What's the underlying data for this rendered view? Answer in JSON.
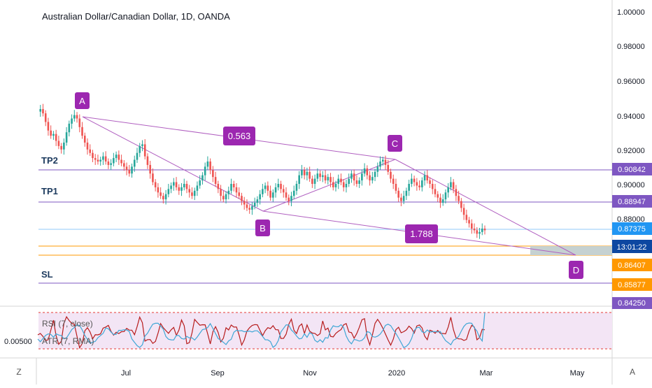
{
  "header": {
    "title": "Australian Dollar/Canadian Dollar, 1D, OANDA"
  },
  "colors": {
    "bull": "#26a69a",
    "bear": "#ef5350",
    "harmonic": "#b05fc0",
    "label_fill": "#9c27b0",
    "level_line": "#7e57c2",
    "price_line": "#90caf9",
    "stop_orange": "#ff9800",
    "rsi": "#b71c1c",
    "atr": "#3fa7d6",
    "rsi_band": "#f3e5f5",
    "rsi_bound": "#e53935",
    "projection_box": "#c5d1d1"
  },
  "chart_data": {
    "type": "candlestick",
    "x_tick_labels": [
      "Jul",
      "Sep",
      "Nov",
      "2020",
      "Mar",
      "May"
    ],
    "y_tick_labels": [
      "1.00000",
      "0.98000",
      "0.96000",
      "0.94000",
      "0.92000",
      "0.90000",
      "0.88000"
    ],
    "ylim": [
      0.8425,
      1.0
    ],
    "price_path": [
      0.942,
      0.9435,
      0.941,
      0.936,
      0.931,
      0.928,
      0.929,
      0.925,
      0.922,
      0.92,
      0.924,
      0.93,
      0.935,
      0.938,
      0.94,
      0.938,
      0.933,
      0.928,
      0.924,
      0.92,
      0.918,
      0.915,
      0.914,
      0.913,
      0.914,
      0.916,
      0.913,
      0.911,
      0.912,
      0.915,
      0.917,
      0.914,
      0.912,
      0.91,
      0.908,
      0.906,
      0.91,
      0.914,
      0.918,
      0.922,
      0.923,
      0.916,
      0.911,
      0.906,
      0.901,
      0.898,
      0.895,
      0.893,
      0.891,
      0.894,
      0.897,
      0.899,
      0.901,
      0.898,
      0.896,
      0.898,
      0.9,
      0.897,
      0.895,
      0.893,
      0.896,
      0.899,
      0.902,
      0.905,
      0.91,
      0.913,
      0.908,
      0.904,
      0.9,
      0.897,
      0.893,
      0.891,
      0.894,
      0.896,
      0.9,
      0.898,
      0.895,
      0.893,
      0.89,
      0.888,
      0.886,
      0.885,
      0.887,
      0.889,
      0.891,
      0.894,
      0.897,
      0.899,
      0.896,
      0.892,
      0.895,
      0.898,
      0.9,
      0.897,
      0.895,
      0.892,
      0.89,
      0.893,
      0.896,
      0.9,
      0.905,
      0.908,
      0.905,
      0.907,
      0.903,
      0.9,
      0.903,
      0.906,
      0.904,
      0.905,
      0.902,
      0.904,
      0.901,
      0.898,
      0.9,
      0.903,
      0.901,
      0.898,
      0.9,
      0.903,
      0.906,
      0.902,
      0.9,
      0.902,
      0.906,
      0.909,
      0.905,
      0.902,
      0.904,
      0.907,
      0.91,
      0.913,
      0.914,
      0.911,
      0.907,
      0.903,
      0.9,
      0.896,
      0.892,
      0.89,
      0.893,
      0.896,
      0.9,
      0.903,
      0.901,
      0.899,
      0.898,
      0.902,
      0.905,
      0.902,
      0.9,
      0.897,
      0.894,
      0.892,
      0.889,
      0.891,
      0.895,
      0.898,
      0.901,
      0.897,
      0.893,
      0.89,
      0.886,
      0.882,
      0.879,
      0.877,
      0.874,
      0.873,
      0.871,
      0.872,
      0.874,
      0.873
    ],
    "levels": [
      {
        "name": "TP2",
        "price": 0.90842,
        "price_label": "0.90842"
      },
      {
        "name": "TP1",
        "price": 0.88947,
        "price_label": "0.88947"
      },
      {
        "name": "SL",
        "price": 0.8425,
        "price_label": "0.84250"
      }
    ],
    "current_price": {
      "value": 0.87375,
      "label": "0.87375",
      "countdown": "13:01:22"
    },
    "orange_levels": [
      {
        "price": 0.86407,
        "label": "0.86407"
      },
      {
        "price": 0.85877,
        "label": "0.85877"
      }
    ],
    "pattern_points": [
      "A",
      "B",
      "C",
      "D"
    ],
    "ratios": [
      "0.563",
      "1.788"
    ],
    "indicators": {
      "rsi": {
        "label": "RSI (7, close)",
        "upper": 70,
        "lower": 30
      },
      "atr": {
        "label": "ATR (7, RMA)",
        "tick_label": "0.00500"
      }
    }
  },
  "corner": {
    "left": "Z",
    "right": "A"
  }
}
